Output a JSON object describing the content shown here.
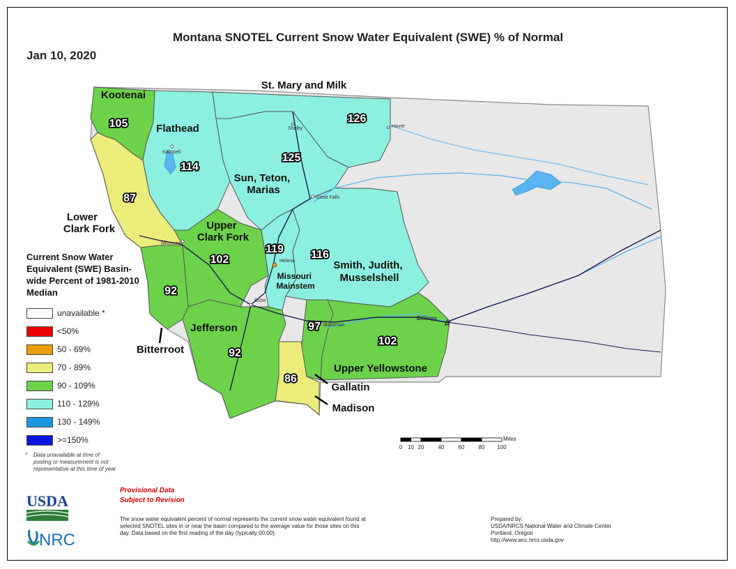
{
  "title": "Montana SNOTEL Current Snow Water Equivalent (SWE) % of Normal",
  "date": "Jan 10, 2020",
  "colors": {
    "unavailable": "#ffffff",
    "lt50": "#ee0000",
    "c50_69": "#e8a000",
    "c70_89": "#ecec7a",
    "c90_109": "#6cd24a",
    "c110_129": "#8cf0e0",
    "c130_149": "#1c96e0",
    "ge150": "#0a14dc",
    "nodata_land": "#e8e8e8",
    "water": "#5ab4f0",
    "road": "#1a1a50"
  },
  "basins": [
    {
      "id": "kootenai",
      "name": "Kootenai",
      "value": "105",
      "color_key": "c90_109"
    },
    {
      "id": "flathead",
      "name": "Flathead",
      "value": "114",
      "color_key": "c110_129"
    },
    {
      "id": "st-mary-milk",
      "name": "St. Mary and Milk",
      "value": "126",
      "color_key": "c110_129"
    },
    {
      "id": "sun-teton-marias",
      "name": "Sun, Teton, Marias",
      "value": "125",
      "color_key": "c110_129"
    },
    {
      "id": "lower-clark-fork",
      "name": "Lower Clark Fork",
      "value": "87",
      "color_key": "c70_89"
    },
    {
      "id": "upper-clark-fork",
      "name": "Upper Clark Fork",
      "value": "102",
      "color_key": "c90_109"
    },
    {
      "id": "missouri-mainstem",
      "name": "Missouri Mainstem",
      "value": "119",
      "color_key": "c110_129"
    },
    {
      "id": "smith-judith-musselshell",
      "name": "Smith, Judith, Musselshell",
      "value": "116",
      "color_key": "c110_129"
    },
    {
      "id": "bitterroot",
      "name": "Bitterroot",
      "value": "92",
      "color_key": "c90_109"
    },
    {
      "id": "jefferson",
      "name": "Jefferson",
      "value": "92",
      "color_key": "c90_109"
    },
    {
      "id": "gallatin",
      "name": "Gallatin",
      "value": "97",
      "color_key": "c90_109"
    },
    {
      "id": "madison",
      "name": "Madison",
      "value": "86",
      "color_key": "c70_89"
    },
    {
      "id": "upper-yellowstone",
      "name": "Upper Yellowstone",
      "value": "102",
      "color_key": "c90_109"
    }
  ],
  "cities": [
    "Kalispell",
    "Shelby",
    "Havre",
    "Great Falls",
    "Missoula",
    "Helena",
    "Butte",
    "Bozeman",
    "Billings"
  ],
  "legend": {
    "title": "Current Snow Water Equivalent (SWE) Basin-wide Percent of 1981-2010 Median",
    "items": [
      {
        "label": "unavailable *",
        "color_key": "unavailable"
      },
      {
        "label": "<50%",
        "color_key": "lt50"
      },
      {
        "label": "50 - 69%",
        "color_key": "c50_69"
      },
      {
        "label": "70 - 89%",
        "color_key": "c70_89"
      },
      {
        "label": "90 - 109%",
        "color_key": "c90_109"
      },
      {
        "label": "110 - 129%",
        "color_key": "c110_129"
      },
      {
        "label": "130 - 149%",
        "color_key": "c130_149"
      },
      {
        "label": ">=150%",
        "color_key": "ge150"
      }
    ]
  },
  "footnote": {
    "star": "*",
    "text": "Data unavailable at time of posting or measurement is not representative at this time of year"
  },
  "provisional": [
    "Provisional Data",
    "Subject to Revision"
  ],
  "description": "The snow water equivalent percent of normal represents the current snow water equivalent found at selected SNOTEL sites in or near the basin compared to the average value for those sites on this day. Data based on the first reading of the day (typically 00:00).",
  "prepared": [
    "Prepared by:",
    "USDA/NRCS National Water and Climate Center",
    "Portland, Oregon",
    "http://www.wcc.nrcs.usda.gov"
  ],
  "scale": {
    "unit": "Miles",
    "ticks": [
      "0",
      "10",
      "20",
      "40",
      "60",
      "80",
      "100"
    ]
  },
  "logos": {
    "usda": "USDA",
    "nrcs": "NRCS"
  }
}
